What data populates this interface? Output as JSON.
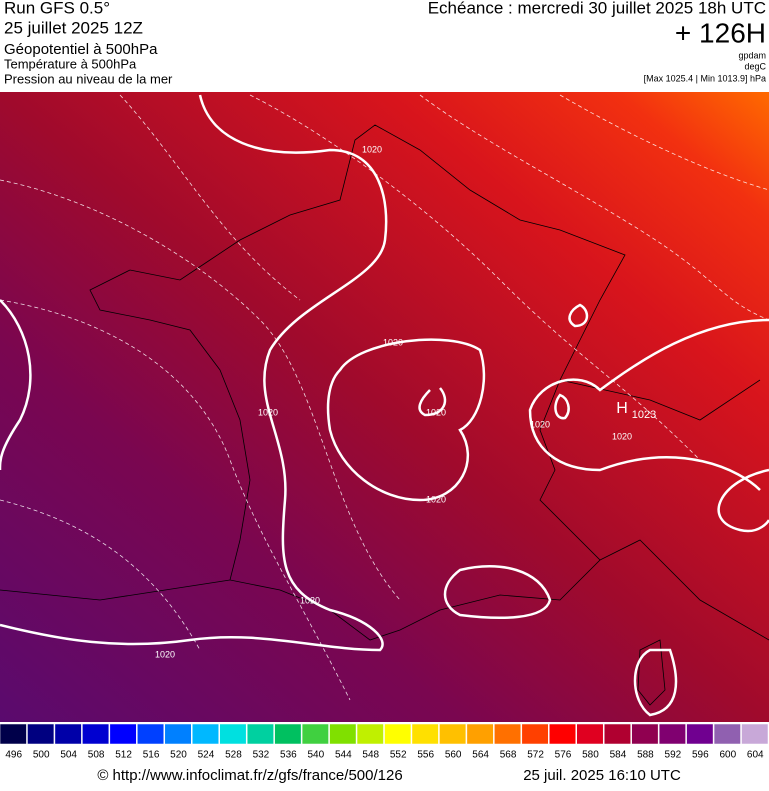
{
  "header": {
    "run": "Run GFS 0.5°",
    "run_date": "25 juillet 2025 12Z",
    "field": "Géopotentiel à 500hPa",
    "field2": "Température à 500hPa",
    "field3": "Pression au niveau de la mer",
    "valid": "Echéance : mercredi 30 juillet 2025 18h UTC",
    "lead": "+ 126H",
    "unit1": "gpdam",
    "unit2": "degC",
    "extremes": "[Max 1025.4 | Min 1013.9] hPa"
  },
  "map": {
    "isobar_labels": [
      "1020",
      "1020",
      "1020",
      "1020",
      "1020",
      "1020",
      "1020",
      "1020",
      "1020"
    ],
    "high": "H",
    "high_value": "1023"
  },
  "colorbar": {
    "ticks": [
      496,
      500,
      504,
      508,
      512,
      516,
      520,
      524,
      528,
      532,
      536,
      540,
      544,
      548,
      552,
      556,
      560,
      564,
      568,
      572,
      576,
      580,
      584,
      588,
      592,
      596,
      600,
      604
    ],
    "colors": [
      "#00004a",
      "#000080",
      "#0000a8",
      "#0000d0",
      "#0000ff",
      "#0040ff",
      "#0080ff",
      "#00b8ff",
      "#00e0e0",
      "#00d0a0",
      "#00c060",
      "#40d040",
      "#80e000",
      "#c0f000",
      "#ffff00",
      "#ffe000",
      "#ffc000",
      "#ffa000",
      "#ff7000",
      "#ff4000",
      "#ff0000",
      "#e00020",
      "#b00030",
      "#900050",
      "#800070",
      "#700090",
      "#9060b0",
      "#c8a8d8"
    ]
  },
  "footer": {
    "url": "© http://www.infoclimat.fr/z/gfs/france/500/126",
    "timestamp": "25 juil. 2025 16:10 UTC"
  }
}
